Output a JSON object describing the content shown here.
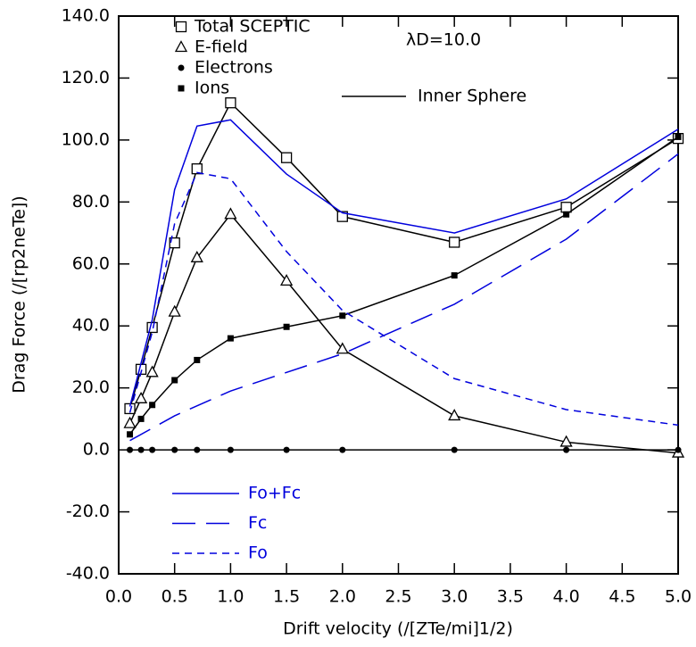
{
  "chart_data": {
    "type": "line",
    "xlabel": "Drift velocity (/[ZTe/mi]1/2)",
    "ylabel": "Drag Force (/[rp2neTe])",
    "annotation": "λD=10.0",
    "line_legend": "Inner Sphere",
    "xlim": [
      0,
      5
    ],
    "ylim": [
      -40,
      140
    ],
    "xticks": [
      {
        "value": 0,
        "label": "0.0"
      },
      {
        "value": 0.5,
        "label": "0.5"
      },
      {
        "value": 1,
        "label": "1.0"
      },
      {
        "value": 1.5,
        "label": "1.5"
      },
      {
        "value": 2,
        "label": "2.0"
      },
      {
        "value": 2.5,
        "label": "2.5"
      },
      {
        "value": 3,
        "label": "3.0"
      },
      {
        "value": 3.5,
        "label": "3.5"
      },
      {
        "value": 4,
        "label": "4.0"
      },
      {
        "value": 4.5,
        "label": "4.5"
      },
      {
        "value": 5,
        "label": "5.0"
      }
    ],
    "yticks": [
      {
        "value": -40,
        "label": "-40.0"
      },
      {
        "value": -20,
        "label": "-20.0"
      },
      {
        "value": 0,
        "label": "0.0"
      },
      {
        "value": 20,
        "label": "20.0"
      },
      {
        "value": 40,
        "label": "40.0"
      },
      {
        "value": 60,
        "label": "60.0"
      },
      {
        "value": 80,
        "label": "80.0"
      },
      {
        "value": 100,
        "label": "100.0"
      },
      {
        "value": 120,
        "label": "120.0"
      },
      {
        "value": 140,
        "label": "140.0"
      }
    ],
    "series": [
      {
        "name": "Total SCEPTIC",
        "color": "#000000",
        "marker": "square-open",
        "dash": "solid",
        "x": [
          0.1,
          0.2,
          0.3,
          0.5,
          0.7,
          1.0,
          1.5,
          2.0,
          3.0,
          4.0,
          5.0
        ],
        "values": [
          13.3,
          26,
          39.5,
          66.8,
          90.7,
          112,
          94.3,
          75.3,
          67,
          78.3,
          100.5
        ]
      },
      {
        "name": "E-field",
        "color": "#000000",
        "marker": "triangle-open",
        "dash": "solid",
        "x": [
          0.1,
          0.2,
          0.3,
          0.5,
          0.7,
          1.0,
          1.5,
          2.0,
          3.0,
          4.0,
          5.0
        ],
        "values": [
          8.5,
          16.5,
          25,
          44.5,
          62,
          76,
          54.5,
          32.5,
          11,
          2.5,
          -1
        ]
      },
      {
        "name": "Electrons",
        "color": "#000000",
        "marker": "circle",
        "dash": "solid",
        "x": [
          0.1,
          0.2,
          0.3,
          0.5,
          0.7,
          1.0,
          1.5,
          2.0,
          3.0,
          4.0,
          5.0
        ],
        "values": [
          0,
          0,
          0,
          0,
          0,
          0,
          0,
          0,
          0,
          0,
          0
        ]
      },
      {
        "name": "Ions",
        "color": "#000000",
        "marker": "square",
        "dash": "solid",
        "x": [
          0.1,
          0.2,
          0.3,
          0.5,
          0.7,
          1.0,
          1.5,
          2.0,
          3.0,
          4.0,
          5.0
        ],
        "values": [
          5,
          10,
          14.5,
          22.5,
          29,
          36,
          39.7,
          43.3,
          56.3,
          76,
          101
        ]
      },
      {
        "name": "Fo+Fc",
        "color": "#0000dd",
        "marker": "none",
        "dash": "solid",
        "x": [
          0.1,
          0.3,
          0.5,
          0.7,
          1.0,
          1.5,
          2.0,
          3.0,
          4.0,
          5.0
        ],
        "values": [
          14,
          42,
          84,
          104.5,
          106.5,
          89,
          76.5,
          70,
          81,
          103.5
        ]
      },
      {
        "name": "Fc",
        "color": "#0000dd",
        "marker": "none",
        "dash": "long",
        "x": [
          0.1,
          0.5,
          1.0,
          2.0,
          3.0,
          4.0,
          5.0
        ],
        "values": [
          3,
          11,
          19,
          31,
          47,
          68,
          95.5
        ]
      },
      {
        "name": "Fo",
        "color": "#0000dd",
        "marker": "none",
        "dash": "short",
        "x": [
          0.1,
          0.3,
          0.5,
          0.7,
          1.0,
          1.5,
          2.0,
          3.0,
          4.0,
          5.0
        ],
        "values": [
          12,
          38,
          73,
          89.5,
          87.5,
          64,
          45,
          23,
          13,
          8
        ]
      }
    ]
  }
}
